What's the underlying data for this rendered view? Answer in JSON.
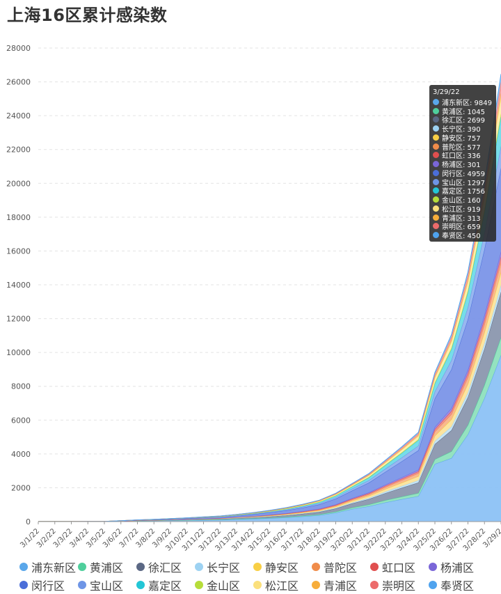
{
  "chart_data": {
    "type": "area",
    "stacked": true,
    "title": "上海16区累计感染数",
    "x": [
      "3/1/22",
      "3/2/22",
      "3/3/22",
      "3/4/22",
      "3/5/22",
      "3/6/22",
      "3/7/22",
      "3/8/22",
      "3/9/22",
      "3/10/22",
      "3/11/22",
      "3/12/22",
      "3/13/22",
      "3/14/22",
      "3/15/22",
      "3/16/22",
      "3/17/22",
      "3/18/22",
      "3/19/22",
      "3/20/22",
      "3/21/22",
      "3/22/22",
      "3/23/22",
      "3/24/22",
      "3/25/22",
      "3/26/22",
      "3/27/22",
      "3/28/22",
      "3/29/22"
    ],
    "x_tick_labels": [
      "3/1/22",
      "3/2/22",
      "3/3/22",
      "3/4/22",
      "3/5/22",
      "3/6/22",
      "3/7/22",
      "3/8/22",
      "3/9/22",
      "3/10/22",
      "3/11/22",
      "3/12/22",
      "3/13/22",
      "3/14/22",
      "3/15/22",
      "3/16/22",
      "3/17/22",
      "3/18/22",
      "3/19/22",
      "3/20/22",
      "3/21/22",
      "3/22/22",
      "3/23/22",
      "3/24/22",
      "3/25/22",
      "3/26/22",
      "3/27/22",
      "3/28/22",
      "3/29/2"
    ],
    "y_ticks": [
      "0",
      "2000",
      "4000",
      "6000",
      "8000",
      "10000",
      "12000",
      "14000",
      "16000",
      "18000",
      "20000",
      "22000",
      "24000",
      "26000",
      "28000"
    ],
    "ylim": [
      0,
      28000
    ],
    "grid": true,
    "legend_position": "bottom",
    "series": [
      {
        "name": "浦东新区",
        "color": "#8cc2f5",
        "line": "#5aa7ea",
        "values": [
          2,
          2,
          3,
          5,
          6,
          22,
          42,
          52,
          65,
          80,
          95,
          105,
          135,
          160,
          195,
          240,
          300,
          370,
          520,
          740,
          900,
          1130,
          1320,
          1500,
          3400,
          3750,
          5150,
          7300,
          9849
        ]
      },
      {
        "name": "黄浦区",
        "color": "#8ee0bd",
        "line": "#4fcf9c",
        "values": [
          0,
          0,
          0,
          0,
          0,
          2,
          4,
          5,
          6,
          8,
          10,
          12,
          15,
          20,
          25,
          30,
          38,
          45,
          60,
          85,
          105,
          130,
          155,
          185,
          280,
          400,
          560,
          780,
          1045
        ]
      },
      {
        "name": "徐汇区",
        "color": "#8b97ae",
        "line": "#5b6884",
        "values": [
          1,
          1,
          1,
          2,
          2,
          6,
          10,
          14,
          20,
          26,
          32,
          40,
          52,
          65,
          78,
          95,
          120,
          150,
          190,
          250,
          320,
          420,
          520,
          620,
          900,
          1250,
          1650,
          2150,
          2699
        ]
      },
      {
        "name": "长宁区",
        "color": "#c2e3f6",
        "line": "#9dd2f2",
        "values": [
          0,
          0,
          0,
          0,
          0,
          1,
          2,
          3,
          4,
          5,
          6,
          8,
          10,
          13,
          16,
          20,
          25,
          30,
          38,
          50,
          65,
          85,
          105,
          130,
          170,
          215,
          260,
          320,
          390
        ]
      },
      {
        "name": "静安区",
        "color": "#fbe39c",
        "line": "#f8cf45",
        "values": [
          0,
          0,
          0,
          0,
          0,
          2,
          4,
          5,
          7,
          9,
          11,
          14,
          18,
          23,
          29,
          36,
          45,
          56,
          72,
          95,
          120,
          155,
          195,
          240,
          320,
          420,
          520,
          640,
          757
        ]
      },
      {
        "name": "普陀区",
        "color": "#f8b48a",
        "line": "#f08c4a",
        "values": [
          0,
          0,
          0,
          0,
          0,
          1,
          3,
          4,
          6,
          8,
          10,
          12,
          15,
          19,
          24,
          30,
          37,
          45,
          58,
          75,
          95,
          120,
          150,
          185,
          250,
          320,
          400,
          490,
          577
        ]
      },
      {
        "name": "虹口区",
        "color": "#ec8d8d",
        "line": "#e04f4f",
        "values": [
          0,
          0,
          0,
          0,
          0,
          1,
          2,
          3,
          4,
          5,
          6,
          8,
          10,
          12,
          15,
          19,
          23,
          28,
          36,
          46,
          58,
          72,
          88,
          106,
          140,
          180,
          225,
          280,
          336
        ]
      },
      {
        "name": "杨浦区",
        "color": "#9c8be3",
        "line": "#7a66d8",
        "values": [
          0,
          0,
          0,
          0,
          0,
          1,
          2,
          3,
          4,
          5,
          6,
          7,
          9,
          11,
          14,
          17,
          21,
          25,
          32,
          41,
          52,
          64,
          78,
          94,
          125,
          160,
          200,
          250,
          301
        ]
      },
      {
        "name": "闵行区",
        "color": "#7b95e8",
        "line": "#4b6ed9",
        "values": [
          1,
          1,
          2,
          2,
          3,
          8,
          14,
          20,
          28,
          38,
          48,
          60,
          80,
          105,
          135,
          170,
          210,
          260,
          340,
          450,
          580,
          760,
          950,
          1150,
          1700,
          2300,
          3000,
          3900,
          4959
        ]
      },
      {
        "name": "宝山区",
        "color": "#94b3ef",
        "line": "#6e95e6",
        "values": [
          0,
          0,
          0,
          0,
          0,
          2,
          4,
          6,
          8,
          10,
          13,
          16,
          20,
          26,
          33,
          42,
          52,
          65,
          85,
          110,
          140,
          180,
          225,
          275,
          400,
          540,
          720,
          960,
          1297
        ]
      },
      {
        "name": "嘉定区",
        "color": "#70dbe8",
        "line": "#23c6d6",
        "values": [
          0,
          0,
          0,
          0,
          0,
          2,
          4,
          6,
          9,
          12,
          15,
          19,
          24,
          31,
          39,
          49,
          61,
          76,
          98,
          128,
          165,
          210,
          265,
          330,
          480,
          650,
          880,
          1250,
          1756
        ]
      },
      {
        "name": "金山区",
        "color": "#d8ef8b",
        "line": "#b6dd3a",
        "values": [
          0,
          0,
          0,
          0,
          0,
          0,
          1,
          1,
          2,
          2,
          3,
          3,
          4,
          5,
          6,
          8,
          10,
          12,
          15,
          20,
          25,
          32,
          40,
          50,
          65,
          80,
          100,
          130,
          160
        ]
      },
      {
        "name": "松江区",
        "color": "#fdeeae",
        "line": "#fbe07c",
        "values": [
          0,
          0,
          0,
          0,
          0,
          1,
          2,
          3,
          4,
          6,
          8,
          10,
          13,
          17,
          22,
          28,
          35,
          44,
          56,
          72,
          92,
          118,
          148,
          185,
          260,
          350,
          470,
          660,
          919
        ]
      },
      {
        "name": "青浦区",
        "color": "#fcd08a",
        "line": "#f7ad3a",
        "values": [
          0,
          0,
          0,
          0,
          0,
          0,
          1,
          1,
          2,
          2,
          3,
          4,
          5,
          6,
          8,
          10,
          12,
          15,
          19,
          25,
          32,
          40,
          50,
          62,
          85,
          115,
          160,
          230,
          313
        ]
      },
      {
        "name": "崇明区",
        "color": "#f3a3a3",
        "line": "#ec6b6b",
        "values": [
          0,
          0,
          0,
          0,
          0,
          1,
          2,
          2,
          3,
          4,
          5,
          6,
          8,
          10,
          13,
          16,
          20,
          25,
          32,
          41,
          52,
          66,
          82,
          102,
          145,
          200,
          290,
          430,
          659
        ]
      },
      {
        "name": "奉贤区",
        "color": "#9fcbf5",
        "line": "#4fa3ee",
        "values": [
          0,
          0,
          0,
          0,
          0,
          1,
          1,
          2,
          3,
          3,
          4,
          5,
          6,
          8,
          10,
          12,
          15,
          18,
          23,
          29,
          37,
          46,
          57,
          70,
          100,
          135,
          190,
          290,
          450
        ]
      }
    ]
  },
  "tooltip": {
    "date": "3/29/22",
    "rows": [
      {
        "text": "浦东新区: 9849",
        "color": "#5aa7ea"
      },
      {
        "text": "黄浦区: 1045",
        "color": "#4fcf9c"
      },
      {
        "text": "徐汇区: 2699",
        "color": "#5b6884"
      },
      {
        "text": "长宁区: 390",
        "color": "#9dd2f2"
      },
      {
        "text": "静安区: 757",
        "color": "#f8cf45"
      },
      {
        "text": "普陀区: 577",
        "color": "#f08c4a"
      },
      {
        "text": "虹口区: 336",
        "color": "#e04f4f"
      },
      {
        "text": "杨浦区: 301",
        "color": "#7a66d8"
      },
      {
        "text": "闵行区: 4959",
        "color": "#4b6ed9"
      },
      {
        "text": "宝山区: 1297",
        "color": "#6e95e6"
      },
      {
        "text": "嘉定区: 1756",
        "color": "#23c6d6"
      },
      {
        "text": "金山区: 160",
        "color": "#b6dd3a"
      },
      {
        "text": "松江区: 919",
        "color": "#fbe07c"
      },
      {
        "text": "青浦区: 313",
        "color": "#f7ad3a"
      },
      {
        "text": "崇明区: 659",
        "color": "#ec6b6b"
      },
      {
        "text": "奉贤区: 450",
        "color": "#4fa3ee"
      }
    ]
  }
}
